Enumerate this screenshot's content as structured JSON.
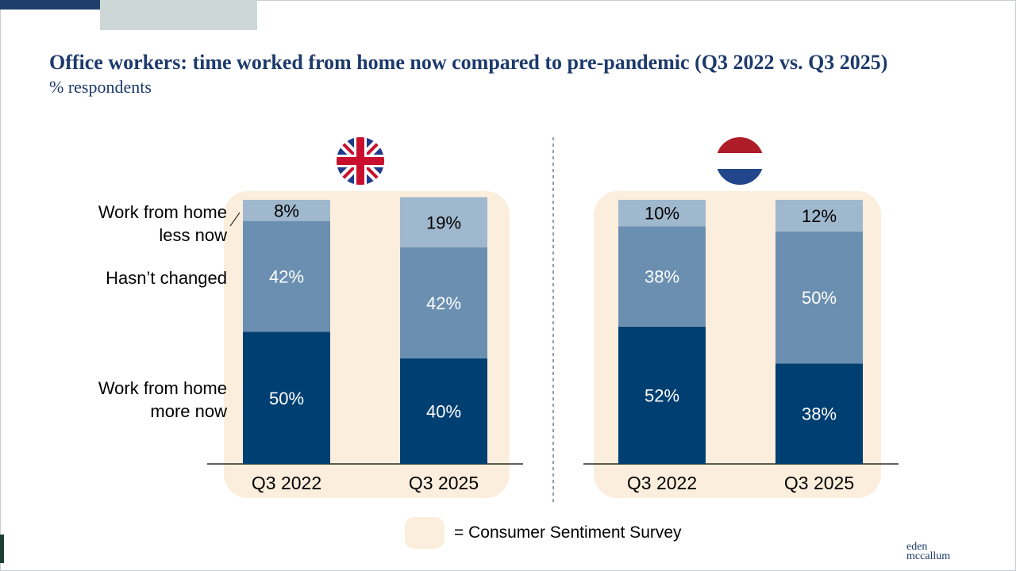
{
  "header": {
    "title": "Office workers: time worked from home now compared to pre-pandemic (Q3 2022 vs. Q3 2025)",
    "subtitle": "% respondents"
  },
  "category_labels": {
    "less": "Work from home less now",
    "less_line1": "Work from home",
    "less_line2": "less now",
    "same": "Hasn’t changed",
    "more_line1": "Work from home",
    "more_line2": "more now"
  },
  "legend": {
    "label": "= Consumer Sentiment Survey",
    "swatch_color": "#fbeedd"
  },
  "logo": {
    "line1": "eden",
    "line2": "mccallum"
  },
  "colors": {
    "more": "#003f72",
    "same": "#6a8fb1",
    "less": "#9fb8cd",
    "panel": "#fbeedd",
    "label_dark": "#ffffff",
    "label_light": "#000000"
  },
  "chart_data": [
    {
      "type": "bar",
      "stacked": true,
      "country": "United Kingdom",
      "flag": "uk-flag",
      "categories": [
        "Q3 2022",
        "Q3 2025"
      ],
      "series": [
        {
          "name": "Work from home more now",
          "values": [
            50,
            40
          ]
        },
        {
          "name": "Hasn’t changed",
          "values": [
            42,
            42
          ]
        },
        {
          "name": "Work from home less now",
          "values": [
            8,
            19
          ]
        }
      ],
      "data_labels": [
        [
          "50%",
          "40%"
        ],
        [
          "42%",
          "42%"
        ],
        [
          "8%",
          "19%"
        ]
      ],
      "ylim": [
        0,
        100
      ]
    },
    {
      "type": "bar",
      "stacked": true,
      "country": "Netherlands",
      "flag": "netherlands-flag",
      "categories": [
        "Q3 2022",
        "Q3 2025"
      ],
      "series": [
        {
          "name": "Work from home more now",
          "values": [
            52,
            38
          ]
        },
        {
          "name": "Hasn’t changed",
          "values": [
            38,
            50
          ]
        },
        {
          "name": "Work from home less now",
          "values": [
            10,
            12
          ]
        }
      ],
      "data_labels": [
        [
          "52%",
          "38%"
        ],
        [
          "38%",
          "50%"
        ],
        [
          "10%",
          "12%"
        ]
      ],
      "ylim": [
        0,
        100
      ]
    }
  ]
}
